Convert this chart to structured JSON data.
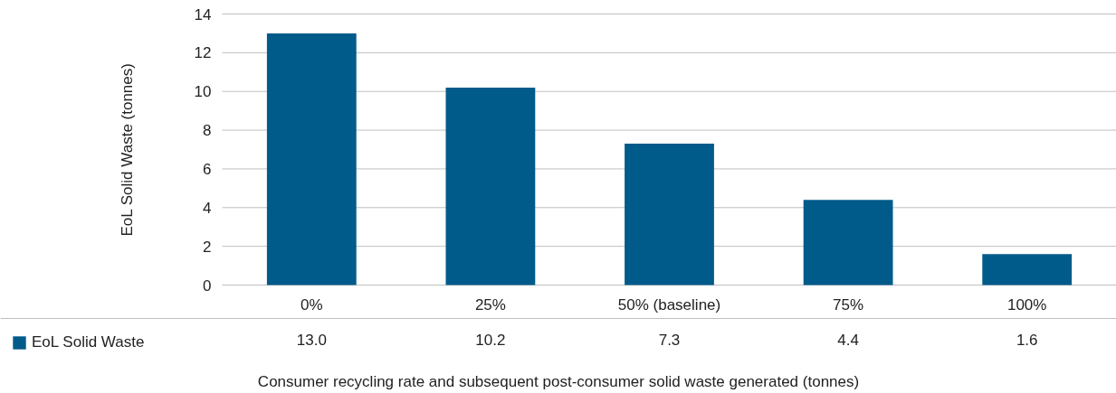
{
  "chart_data": {
    "type": "bar",
    "xlabel": "Consumer recycling rate and subsequent post-consumer solid waste generated (tonnes)",
    "ylabel": "EoL Solid Waste (tonnes)",
    "categories": [
      "0%",
      "25%",
      "50% (baseline)",
      "75%",
      "100%"
    ],
    "series": [
      {
        "name": "EoL Solid Waste",
        "color": "#005b8a",
        "values": [
          13.0,
          10.2,
          7.3,
          4.4,
          1.6
        ],
        "value_labels": [
          "13.0",
          "10.2",
          "7.3",
          "4.4",
          "1.6"
        ]
      }
    ],
    "ylim": [
      0,
      14
    ],
    "yticks": [
      0,
      2,
      4,
      6,
      8,
      10,
      12,
      14
    ],
    "grid": "y",
    "legend": "bottom left"
  }
}
